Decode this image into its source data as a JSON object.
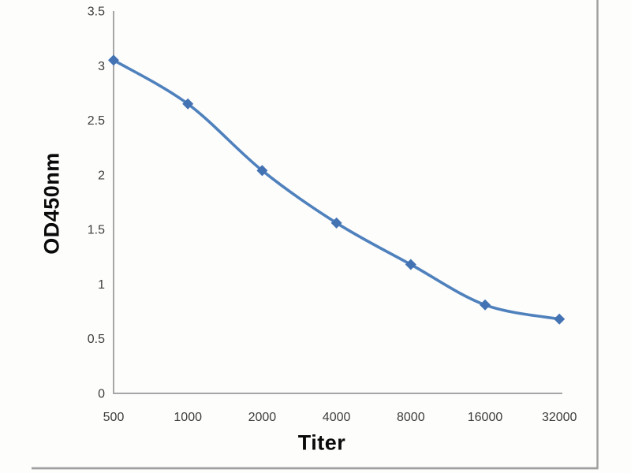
{
  "chart_data": {
    "type": "line",
    "title": "",
    "xlabel": "Titer",
    "ylabel": "OD450nm",
    "categories": [
      "500",
      "1000",
      "2000",
      "4000",
      "8000",
      "16000",
      "32000"
    ],
    "series": [
      {
        "name": "OD450nm",
        "values": [
          3.05,
          2.65,
          2.04,
          1.56,
          1.18,
          0.81,
          0.68
        ]
      }
    ],
    "ylim": [
      0,
      3.5
    ],
    "yticks": [
      0,
      0.5,
      1,
      1.5,
      2,
      2.5,
      3,
      3.5
    ],
    "ytick_labels": [
      "0",
      "0.5",
      "1",
      "1.5",
      "2",
      "2.5",
      "3",
      "3.5"
    ],
    "grid": false,
    "legend": false,
    "line_smoothed": true,
    "marker": "diamond",
    "colors": {
      "line": "#4f81bd",
      "marker": "#4473b3",
      "axis": "#a6a6a6",
      "tick_text": "#3d3d3d",
      "axis_title_text": "#0a0a0a",
      "frame_border": "#9f9f9f",
      "background": "#fdfdfc"
    }
  }
}
